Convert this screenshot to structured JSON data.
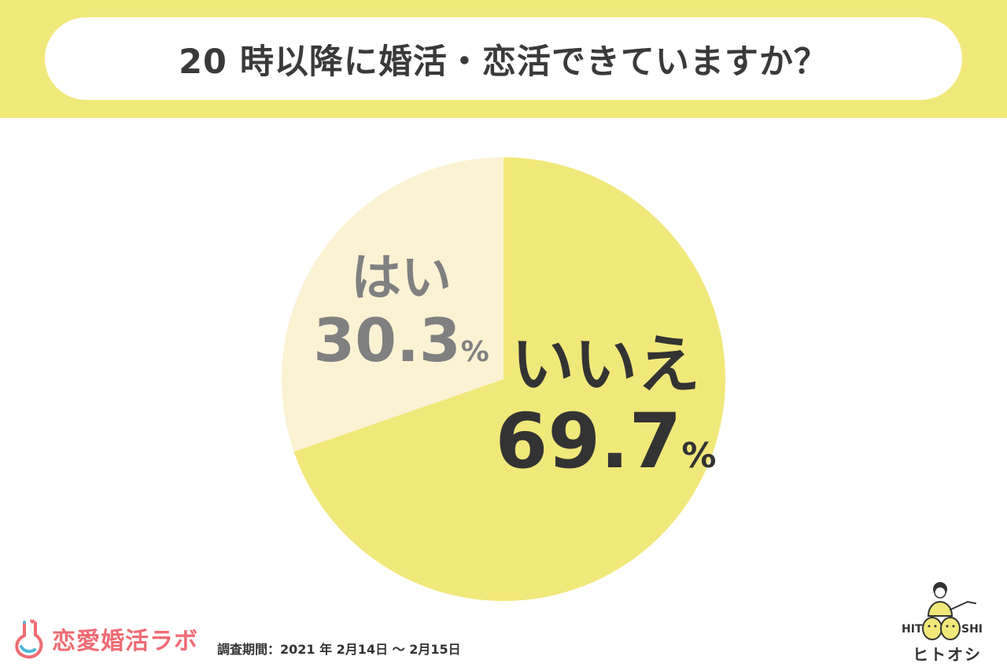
{
  "header": {
    "title": "20 時以降に婚活・恋活できていますか？"
  },
  "colors": {
    "header_band": "#f1e87a",
    "slice_yes": "#fbf2d4",
    "slice_no": "#f1e87a",
    "brand": "#ef6b73"
  },
  "chart_data": {
    "type": "pie",
    "title": "20 時以降に婚活・恋活できていますか？",
    "slices": [
      {
        "label": "はい",
        "value": 30.3,
        "value_text": "30.3",
        "unit": "%",
        "color": "#fbf2d4"
      },
      {
        "label": "いいえ",
        "value": 69.7,
        "value_text": "69.7",
        "unit": "%",
        "color": "#f1e87a"
      }
    ],
    "start": "12 o'clock",
    "direction": "counterclockwise for はい, clockwise for いいえ"
  },
  "footer": {
    "brand_name": "恋愛婚活ラボ",
    "brand_icon": "flask-heart-icon",
    "survey_period": "調査期間：2021 年 2月14日 ～ 2月15日",
    "logo_text_left": "HIT",
    "logo_text_right": "SHI",
    "logo_kana": "ヒトオシ",
    "logo_icon": "hitoshi-mascot-logo"
  }
}
